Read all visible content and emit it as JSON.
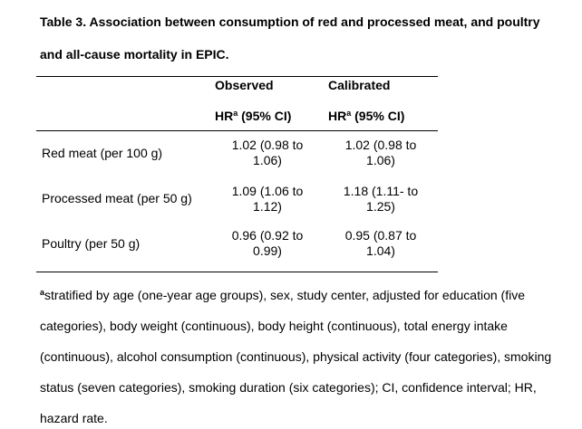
{
  "caption": {
    "line1": "Table 3. Association between consumption of red and processed meat, and poultry",
    "line2": "and all-cause mortality in EPIC."
  },
  "table": {
    "columns": [
      {
        "name": "Observed",
        "sub": "HR",
        "sup": "a",
        "sub_tail": " (95% CI)"
      },
      {
        "name": "Calibrated",
        "sub": "HR",
        "sup": "a",
        "sub_tail": " (95% CI)"
      }
    ],
    "rows": [
      {
        "label": "Red meat (per 100 g)",
        "observed": [
          "1.02 (0.98 to",
          "1.06)"
        ],
        "calibrated": [
          "1.02 (0.98 to",
          "1.06)"
        ]
      },
      {
        "label": "Processed meat (per 50 g)",
        "observed": [
          "1.09 (1.06 to",
          "1.12)"
        ],
        "calibrated": [
          "1.18 (1.11- to",
          "1.25)"
        ]
      },
      {
        "label": "Poultry (per 50 g)",
        "observed": [
          "0.96 (0.92 to",
          "0.99)"
        ],
        "calibrated": [
          "0.95 (0.87 to",
          "1.04)"
        ]
      }
    ]
  },
  "footnote": {
    "marker": "a",
    "lines": [
      "stratified by age (one-year age groups), sex, study center, adjusted for education (five",
      "categories), body weight (continuous), body height (continuous), total energy intake",
      "(continuous), alcohol consumption (continuous), physical activity (four categories), smoking",
      "status (seven categories), smoking duration (six categories); CI, confidence interval; HR,",
      "hazard rate."
    ]
  }
}
